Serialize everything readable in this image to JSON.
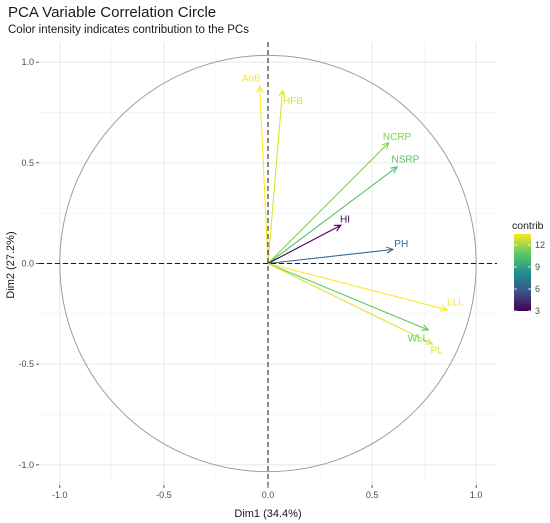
{
  "chart_data": {
    "type": "scatter",
    "subtype": "pca-correlation-circle",
    "title": "PCA Variable Correlation Circle",
    "subtitle": "Color intensity indicates contribution to the PCs",
    "xlabel": "Dim1 (34.4%)",
    "ylabel": "Dim2 (27.2%)",
    "xlim": [
      -1.0,
      1.0
    ],
    "ylim": [
      -1.0,
      1.0
    ],
    "x_ticks": [
      -1.0,
      -0.5,
      0.0,
      0.5,
      1.0
    ],
    "y_ticks": [
      -1.0,
      -0.5,
      0.0,
      0.5,
      1.0
    ],
    "x_tick_labels": [
      "-1.0",
      "-0.5",
      "0.0",
      "0.5",
      "1.0"
    ],
    "y_tick_labels": [
      "-1.0",
      "-0.5",
      "0.0",
      "0.5",
      "1.0"
    ],
    "grid": true,
    "unit_circle": true,
    "colorscale": "viridis",
    "legend": {
      "title": "contrib",
      "placement": "right",
      "min": 3,
      "max": 13.5,
      "ticks": [
        3,
        6,
        9,
        12
      ],
      "tick_labels": [
        "3",
        "6",
        "9",
        "12"
      ]
    },
    "variables": [
      {
        "name": "AoB",
        "x": -0.04,
        "y": 0.88,
        "contrib": 13.5,
        "label_x": -0.08,
        "label_y": 0.92
      },
      {
        "name": "HFB",
        "x": 0.07,
        "y": 0.86,
        "contrib": 13.0,
        "label_x": 0.12,
        "label_y": 0.81
      },
      {
        "name": "NCRP",
        "x": 0.58,
        "y": 0.6,
        "contrib": 11.5,
        "label_x": 0.62,
        "label_y": 0.63
      },
      {
        "name": "NSRP",
        "x": 0.62,
        "y": 0.48,
        "contrib": 10.5,
        "label_x": 0.66,
        "label_y": 0.52
      },
      {
        "name": "HI",
        "x": 0.35,
        "y": 0.19,
        "contrib": 3.0,
        "label_x": 0.37,
        "label_y": 0.22
      },
      {
        "name": "PH",
        "x": 0.6,
        "y": 0.07,
        "contrib": 6.5,
        "label_x": 0.64,
        "label_y": 0.1
      },
      {
        "name": "LLL",
        "x": 0.86,
        "y": -0.23,
        "contrib": 13.5,
        "label_x": 0.9,
        "label_y": -0.19
      },
      {
        "name": "WLL",
        "x": 0.77,
        "y": -0.33,
        "contrib": 11.0,
        "label_x": 0.72,
        "label_y": -0.37
      },
      {
        "name": "PL",
        "x": 0.79,
        "y": -0.4,
        "contrib": 13.0,
        "label_x": 0.81,
        "label_y": -0.43
      }
    ]
  }
}
